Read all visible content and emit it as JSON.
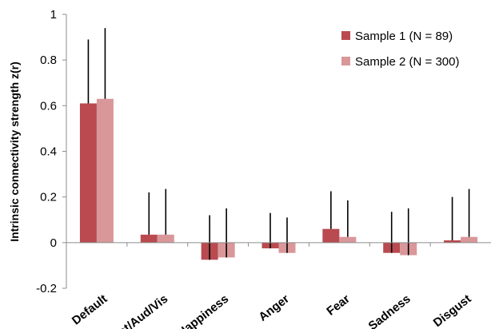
{
  "chart_data": {
    "type": "bar",
    "title": "",
    "xlabel": "",
    "ylabel": "Intrinsic connectivity strength z(r)",
    "ylim": [
      -0.2,
      1
    ],
    "yticks": [
      "-0.2",
      "0",
      "0.2",
      "0.4",
      "0.6",
      "0.8",
      "1"
    ],
    "grid": false,
    "legend_position": "top-right",
    "categories": [
      "Default",
      "Mot/Aud/Vis",
      "Happiness",
      "Anger",
      "Fear",
      "Sadness",
      "Disgust"
    ],
    "series": [
      {
        "name": "Sample 1 (N = 89)",
        "color": "#b94a4f",
        "values": [
          0.61,
          0.035,
          -0.075,
          -0.025,
          0.06,
          -0.045,
          0.01
        ],
        "error_top": [
          0.89,
          0.22,
          0.12,
          0.13,
          0.225,
          0.135,
          0.2
        ]
      },
      {
        "name": "Sample 2 (N = 300)",
        "color": "#d9979a",
        "values": [
          0.63,
          0.035,
          -0.065,
          -0.045,
          0.025,
          -0.055,
          0.025
        ],
        "error_top": [
          0.94,
          0.235,
          0.15,
          0.11,
          0.185,
          0.15,
          0.235
        ]
      }
    ]
  }
}
